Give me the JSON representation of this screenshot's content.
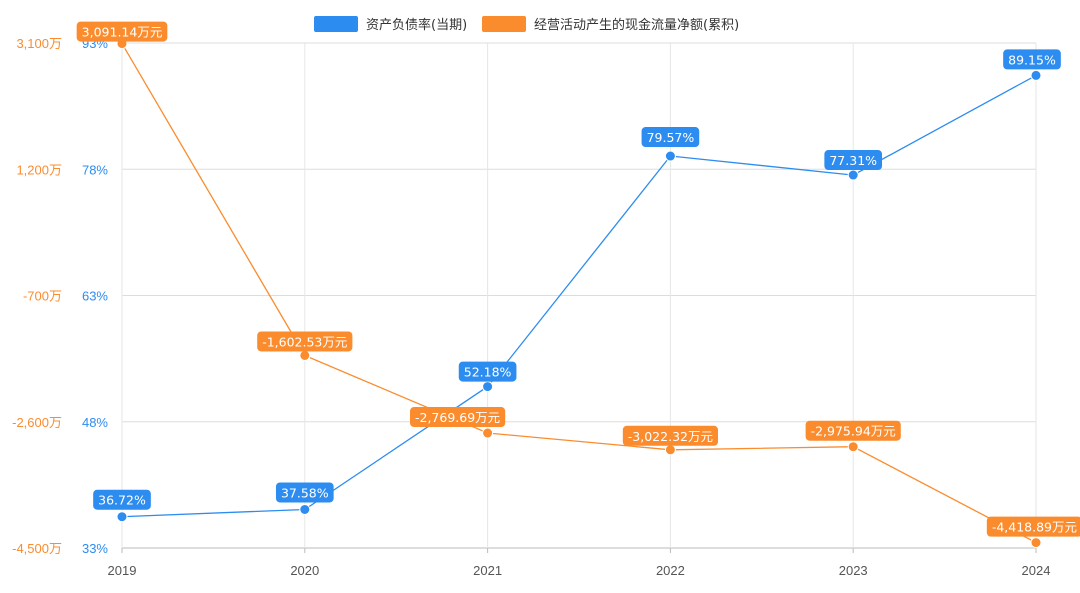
{
  "chart_data": {
    "type": "line",
    "categories": [
      "2019",
      "2020",
      "2021",
      "2022",
      "2023",
      "2024"
    ],
    "legend_position": "top-center",
    "grid": true,
    "series": [
      {
        "name": "资产负债率(当期)",
        "axis": "left-inner",
        "color": "#2d8cf0",
        "values": [
          36.72,
          37.58,
          52.18,
          79.57,
          77.31,
          89.15
        ],
        "labels": [
          "36.72%",
          "37.58%",
          "52.18%",
          "79.57%",
          "77.31%",
          "89.15%"
        ]
      },
      {
        "name": "经营活动产生的现金流量净额(累积)",
        "axis": "left-outer",
        "color": "#fb8c2e",
        "values": [
          3091.14,
          -1602.53,
          -2769.69,
          -3022.32,
          -2975.94,
          -4418.89
        ],
        "labels": [
          "3,091.14万元",
          "-1,602.53万元",
          "-2,769.69万元",
          "-3,022.32万元",
          "-2,975.94万元",
          "-4,418.89万元"
        ]
      }
    ],
    "y_axis_outer": {
      "range": [
        -4500,
        3100
      ],
      "ticks": [
        "3,100万",
        "1,200万",
        "-700万",
        "-2,600万",
        "-4,500万"
      ],
      "color": "#fb8c2e"
    },
    "y_axis_inner": {
      "range": [
        33,
        93
      ],
      "ticks": [
        "93%",
        "78%",
        "63%",
        "48%",
        "33%"
      ],
      "color": "#2d8cf0"
    },
    "x_axis": {
      "ticks": [
        "2019",
        "2020",
        "2021",
        "2022",
        "2023",
        "2024"
      ]
    }
  }
}
